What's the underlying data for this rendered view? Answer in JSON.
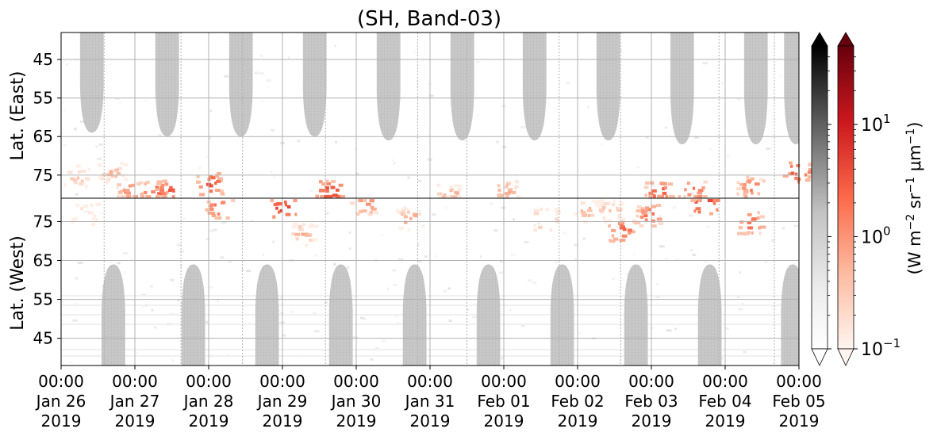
{
  "chart_data": {
    "type": "heatmap",
    "title": "(SH, Band-03)",
    "ylabel_top": "Lat. (East)",
    "ylabel_bottom": "Lat. (West)",
    "y_ticks_east": [
      45,
      55,
      65,
      75
    ],
    "y_ticks_west": [
      75,
      65,
      55,
      45
    ],
    "y_range_east": [
      38,
      81
    ],
    "y_range_west": [
      81,
      38
    ],
    "x_ticks": [
      {
        "time": "00:00",
        "date": "Jan 26",
        "year": "2019"
      },
      {
        "time": "00:00",
        "date": "Jan 27",
        "year": "2019"
      },
      {
        "time": "00:00",
        "date": "Jan 28",
        "year": "2019"
      },
      {
        "time": "00:00",
        "date": "Jan 29",
        "year": "2019"
      },
      {
        "time": "00:00",
        "date": "Jan 30",
        "year": "2019"
      },
      {
        "time": "00:00",
        "date": "Jan 31",
        "year": "2019"
      },
      {
        "time": "00:00",
        "date": "Feb 01",
        "year": "2019"
      },
      {
        "time": "00:00",
        "date": "Feb 02",
        "year": "2019"
      },
      {
        "time": "00:00",
        "date": "Feb 03",
        "year": "2019"
      },
      {
        "time": "00:00",
        "date": "Feb 04",
        "year": "2019"
      },
      {
        "time": "00:00",
        "date": "Feb 05",
        "year": "2019"
      }
    ],
    "grid": true,
    "colorbar_gray": {
      "name": "Greys",
      "scale": "log",
      "extend": "both"
    },
    "colorbar_red": {
      "name": "Reds",
      "scale": "log",
      "extend": "both",
      "tick_labels": [
        {
          "base": "10",
          "exp": "1",
          "value": 10
        },
        {
          "base": "10",
          "exp": "0",
          "value": 1
        },
        {
          "base": "10",
          "exp": "−1",
          "value": 0.1
        }
      ],
      "label": {
        "pre": "(W m",
        "e1": "−2",
        "mid1": " sr",
        "e2": "−1",
        "mid2": " μm",
        "e3": "−1",
        "post": ")"
      }
    },
    "daylight_east": [
      {
        "center": "Jan 26 10:00",
        "min_lat": 64
      },
      {
        "center": "Jan 27 10:30",
        "min_lat": 65
      },
      {
        "center": "Jan 28 10:30",
        "min_lat": 65
      },
      {
        "center": "Jan 29 10:30",
        "min_lat": 65
      },
      {
        "center": "Jan 30 10:30",
        "min_lat": 66
      },
      {
        "center": "Jan 31 10:30",
        "min_lat": 66
      },
      {
        "center": "Feb 01 10:00",
        "min_lat": 66
      },
      {
        "center": "Feb 02 10:00",
        "min_lat": 66
      },
      {
        "center": "Feb 03 10:00",
        "min_lat": 67
      },
      {
        "center": "Feb 04 10:00",
        "min_lat": 67
      },
      {
        "center": "Feb 04 23:00",
        "min_lat": 67
      }
    ],
    "daylight_west": [
      {
        "center": "Jan 26 17:00",
        "min_lat": 64
      },
      {
        "center": "Jan 27 19:00",
        "min_lat": 64
      },
      {
        "center": "Jan 28 19:00",
        "min_lat": 64
      },
      {
        "center": "Jan 29 19:00",
        "min_lat": 64
      },
      {
        "center": "Jan 30 19:00",
        "min_lat": 64
      },
      {
        "center": "Jan 31 19:00",
        "min_lat": 64
      },
      {
        "center": "Feb 01 19:00",
        "min_lat": 64
      },
      {
        "center": "Feb 02 19:00",
        "min_lat": 64
      },
      {
        "center": "Feb 03 19:00",
        "min_lat": 64
      },
      {
        "center": "Feb 04 22:00",
        "min_lat": 64
      }
    ],
    "emission_blobs": [
      {
        "time": "Jan 26 05:00",
        "hemi": "east",
        "lat": 75,
        "value": 0.4
      },
      {
        "time": "Jan 26 07:00",
        "hemi": "west",
        "lat": 77,
        "value": 0.3
      },
      {
        "time": "Jan 26 16:00",
        "hemi": "east",
        "lat": 74,
        "value": 0.5
      },
      {
        "time": "Jan 26 22:00",
        "hemi": "east",
        "lat": 79,
        "value": 1.5
      },
      {
        "time": "Jan 27 06:00",
        "hemi": "east",
        "lat": 79,
        "value": 2.5
      },
      {
        "time": "Jan 27 11:00",
        "hemi": "east",
        "lat": 79,
        "value": 3
      },
      {
        "time": "Jan 28 00:00",
        "hemi": "east",
        "lat": 77,
        "value": 3
      },
      {
        "time": "Jan 28 03:00",
        "hemi": "west",
        "lat": 79,
        "value": 2
      },
      {
        "time": "Jan 29 00:00",
        "hemi": "west",
        "lat": 79,
        "value": 5
      },
      {
        "time": "Jan 29 06:00",
        "hemi": "west",
        "lat": 72,
        "value": 0.6
      },
      {
        "time": "Jan 29 15:00",
        "hemi": "east",
        "lat": 79,
        "value": 4
      },
      {
        "time": "Jan 30 02:00",
        "hemi": "west",
        "lat": 80,
        "value": 1.5
      },
      {
        "time": "Jan 30 17:00",
        "hemi": "west",
        "lat": 76,
        "value": 0.8
      },
      {
        "time": "Jan 31 06:00",
        "hemi": "east",
        "lat": 80,
        "value": 0.7
      },
      {
        "time": "Feb 01 00:00",
        "hemi": "east",
        "lat": 79,
        "value": 1
      },
      {
        "time": "Feb 01 13:00",
        "hemi": "west",
        "lat": 76,
        "value": 0.8
      },
      {
        "time": "Feb 02 03:00",
        "hemi": "west",
        "lat": 78,
        "value": 0.6
      },
      {
        "time": "Feb 02 10:00",
        "hemi": "west",
        "lat": 78,
        "value": 0.6
      },
      {
        "time": "Feb 02 14:00",
        "hemi": "west",
        "lat": 73,
        "value": 2.5
      },
      {
        "time": "Feb 02 23:00",
        "hemi": "west",
        "lat": 77,
        "value": 2
      },
      {
        "time": "Feb 03 02:00",
        "hemi": "east",
        "lat": 79,
        "value": 3
      },
      {
        "time": "Feb 03 13:00",
        "hemi": "east",
        "lat": 79,
        "value": 2
      },
      {
        "time": "Feb 03 17:00",
        "hemi": "west",
        "lat": 80,
        "value": 6
      },
      {
        "time": "Feb 04 08:00",
        "hemi": "east",
        "lat": 78,
        "value": 1.5
      },
      {
        "time": "Feb 04 08:00",
        "hemi": "west",
        "lat": 75,
        "value": 2
      },
      {
        "time": "Feb 04 23:00",
        "hemi": "east",
        "lat": 74,
        "value": 3
      }
    ],
    "dashed_columns": [
      "Jan 26 14:00",
      "Jan 27 15:00",
      "Jan 28 11:00",
      "Jan 29 14:00",
      "Jan 30 20:00",
      "Jan 31 12:00",
      "Feb 01 18:00",
      "Feb 02 14:00",
      "Feb 03 22:00",
      "Feb 04 16:00"
    ]
  }
}
